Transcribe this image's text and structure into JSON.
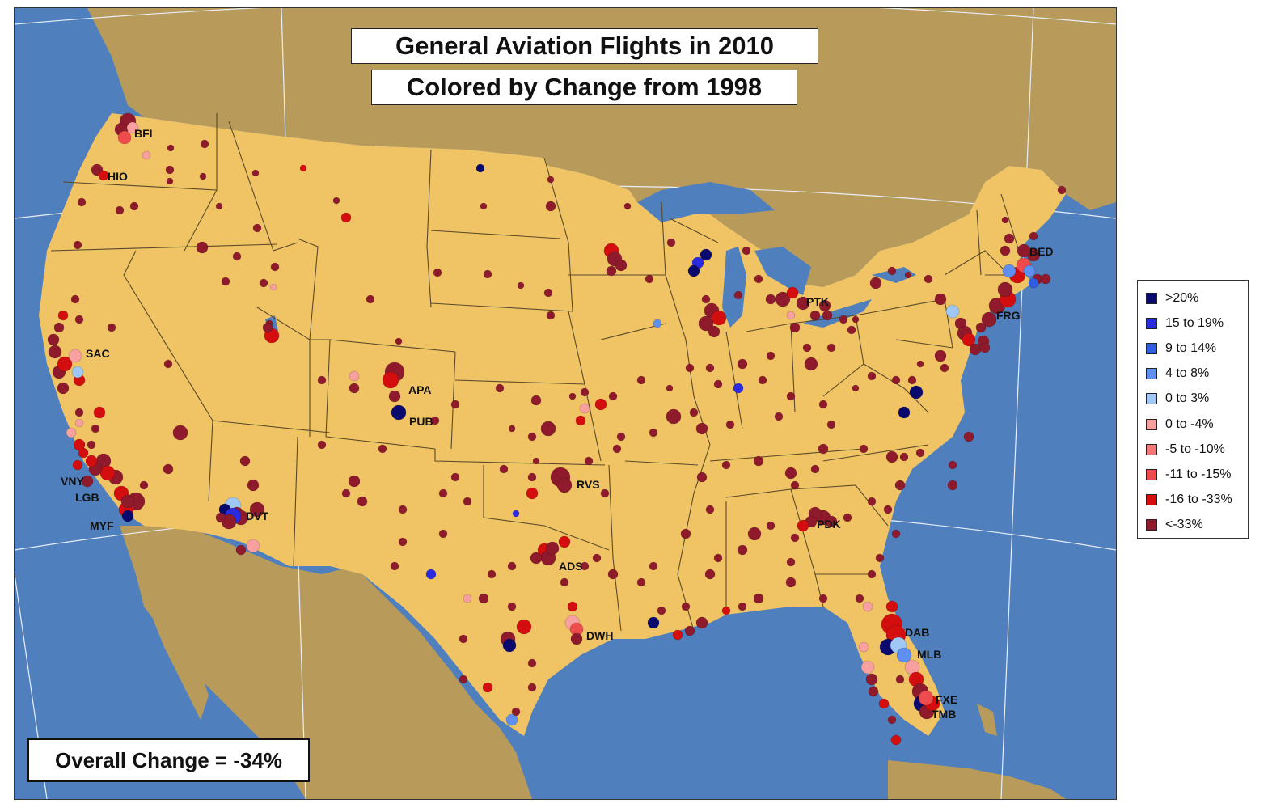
{
  "title_line_1": "General Aviation Flights in 2010",
  "title_line_2": "Colored by Change from 1998",
  "overall_change": "Overall Change = -34%",
  "colors": {
    "ocean": "#4f7fbd",
    "foreign_land": "#b89b5a",
    "us_land": "#f0c464",
    "state_border": "#5a4a2a",
    "graticule": "#e8eef8"
  },
  "legend": {
    "items": [
      {
        "label": ">20%",
        "color": "#0a0a6e"
      },
      {
        "label": "15 to 19%",
        "color": "#2a2ae0"
      },
      {
        "label": "9 to 14%",
        "color": "#2f5fe0"
      },
      {
        "label": "4 to 8%",
        "color": "#5f8ff0"
      },
      {
        "label": "0 to 3%",
        "color": "#9fc8f5"
      },
      {
        "label": "0 to -4%",
        "color": "#f8a0a0"
      },
      {
        "label": "-5 to -10%",
        "color": "#f57878"
      },
      {
        "label": "-11 to -15%",
        "color": "#ee4c4c"
      },
      {
        "label": "-16 to -33%",
        "color": "#d40e0e"
      },
      {
        "label": "<-33%",
        "color": "#8e1a2c"
      }
    ]
  },
  "airport_labels": [
    "BFI",
    "HIO",
    "SAC",
    "VNY",
    "LGB",
    "MYF",
    "DVT",
    "APA",
    "PUB",
    "RVS",
    "ADS",
    "DWH",
    "PDK",
    "PTK",
    "BED",
    "FRG",
    "DAB",
    "MLB",
    "FXE",
    "TMB"
  ]
}
